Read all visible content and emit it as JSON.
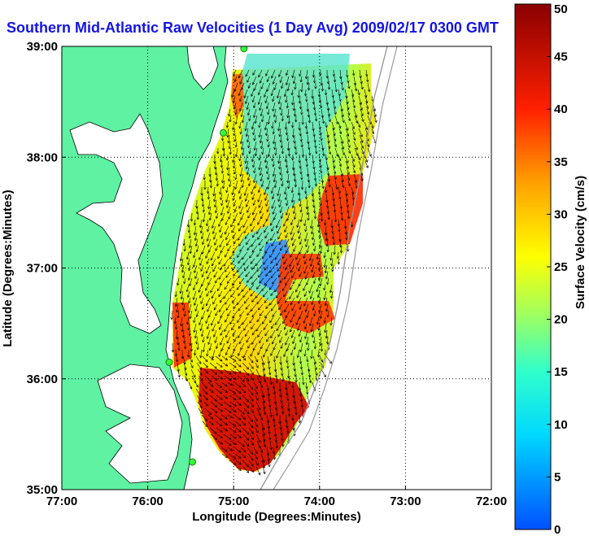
{
  "chart_data": {
    "type": "heatmap",
    "title": "Southern Mid-Atlantic Raw Velocities (1 Day Avg) 2009/02/17 0300 GMT",
    "xlabel": "Longitude (Degrees:Minutes)",
    "ylabel": "Latitude (Degrees:Minutes)",
    "xlim": [
      -77,
      -72
    ],
    "ylim": [
      35,
      39
    ],
    "x_ticks": [
      {
        "value": -77,
        "label": "77:00"
      },
      {
        "value": -76,
        "label": "76:00"
      },
      {
        "value": -75,
        "label": "75:00"
      },
      {
        "value": -74,
        "label": "74:00"
      },
      {
        "value": -73,
        "label": "73:00"
      },
      {
        "value": -72,
        "label": "72:00"
      }
    ],
    "y_ticks": [
      {
        "value": 35,
        "label": "35:00"
      },
      {
        "value": 36,
        "label": "36:00"
      },
      {
        "value": 37,
        "label": "37:00"
      },
      {
        "value": 38,
        "label": "38:00"
      },
      {
        "value": 39,
        "label": "39:00"
      }
    ],
    "grid": true,
    "colorbar": {
      "label": "Surface Velocity (cm/s)",
      "range": [
        0,
        50
      ],
      "ticks": [
        0,
        5,
        10,
        15,
        20,
        25,
        30,
        35,
        40,
        45,
        50
      ],
      "colormap": "jet"
    },
    "colors": {
      "land": "#5ef2a2",
      "title": "#1414e6",
      "vectors": "#000000"
    },
    "stations": [
      {
        "lon": -74.88,
        "lat": 38.98
      },
      {
        "lon": -75.12,
        "lat": 38.22
      },
      {
        "lon": -75.75,
        "lat": 36.15
      },
      {
        "lon": -75.48,
        "lat": 35.25
      }
    ]
  }
}
